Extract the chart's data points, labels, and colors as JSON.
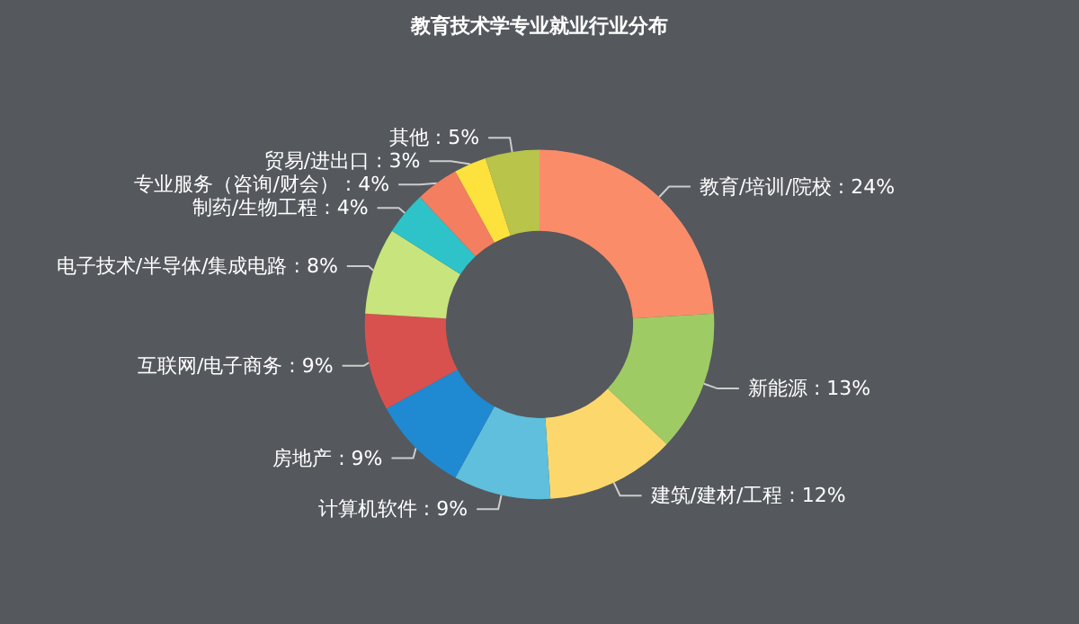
{
  "chart_data": {
    "type": "donut",
    "title": "教育技术学专业就业行业分布",
    "categories": [
      "教育/培训/院校",
      "新能源",
      "建筑/建材/工程",
      "计算机软件",
      "房地产",
      "互联网/电子商务",
      "电子技术/半导体/集成电路",
      "制药/生物工程",
      "专业服务（咨询/财会）",
      "贸易/进出口",
      "其他"
    ],
    "values": [
      24,
      13,
      12,
      9,
      9,
      9,
      8,
      4,
      4,
      3,
      5
    ],
    "value_labels": [
      "24%",
      "13%",
      "12%",
      "9%",
      "9%",
      "9%",
      "8%",
      "4%",
      "4%",
      "3%",
      "5%"
    ],
    "colors": [
      "#fb8c6a",
      "#9fcb64",
      "#fcd86c",
      "#5fbfdd",
      "#1f8ad1",
      "#d9514e",
      "#c8e47c",
      "#2ec3c9",
      "#f47e60",
      "#fde13d",
      "#b8c44a"
    ],
    "legend": false
  }
}
